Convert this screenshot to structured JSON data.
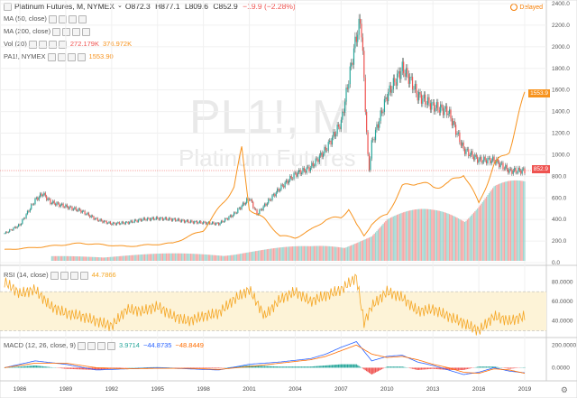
{
  "header": {
    "symbol_name": "Platinum Futures, M, NYMEX",
    "ohlc": {
      "open": "O872.3",
      "high": "H877.1",
      "low": "L809.6",
      "close": "C852.9",
      "change": "−19.9 (−2.28%)"
    },
    "delayed_label": "Delayed"
  },
  "indicators": [
    {
      "label": "MA (50, close)",
      "value": ""
    },
    {
      "label": "MA (200, close)",
      "value": ""
    },
    {
      "label": "Vol (20)",
      "value": "272.179K",
      "value2": "376.972K"
    },
    {
      "label": "PA1!, NYMEX",
      "value": "1553.90"
    }
  ],
  "rsi": {
    "label": "RSI (14, close)",
    "value": "44.7866"
  },
  "macd": {
    "label": "MACD (12, 26, close, 9)",
    "values": [
      "3.9714",
      "−44.8735",
      "−48.8449"
    ]
  },
  "watermark": {
    "ticker": "PL1!, M",
    "name": "Platinum Futures"
  },
  "price_tags": {
    "comparison": "1553.9",
    "last": "852.9"
  },
  "colors": {
    "up": "#26a69a",
    "down": "#ef5350",
    "compare": "#f7931e",
    "rsi": "#f5a623",
    "macd": "#2962ff",
    "signal": "#ff6d00"
  },
  "chart_data": {
    "type": "line",
    "x_ticks": [
      "1986",
      "1989",
      "1992",
      "1995",
      "1998",
      "2001",
      "2004",
      "2007",
      "2010",
      "2013",
      "2016",
      "2019"
    ],
    "main": {
      "y_ticks": [
        0.0,
        200.0,
        400.0,
        600.0,
        800.0,
        1000.0,
        1200.0,
        1400.0,
        1600.0,
        1800.0,
        2000.0,
        2200.0,
        2400.0
      ],
      "ylim": [
        0,
        2400
      ],
      "price_series": {
        "years": [
          1985,
          1986,
          1987,
          1987.5,
          1988,
          1989,
          1990,
          1991,
          1992,
          1993,
          1994,
          1995,
          1996,
          1997,
          1998,
          1999,
          2000,
          2001,
          2001.5,
          2002,
          2003,
          2004,
          2005,
          2006,
          2007,
          2008,
          2008.3,
          2008.8,
          2009,
          2010,
          2011,
          2011.5,
          2012,
          2013,
          2014,
          2015,
          2016,
          2017,
          2018,
          2019
        ],
        "values": [
          270,
          350,
          580,
          640,
          560,
          520,
          480,
          400,
          360,
          370,
          400,
          410,
          400,
          380,
          370,
          360,
          450,
          600,
          450,
          530,
          690,
          820,
          880,
          1050,
          1300,
          2100,
          2250,
          830,
          1100,
          1550,
          1800,
          1700,
          1550,
          1450,
          1400,
          1050,
          950,
          950,
          850,
          853
        ]
      },
      "comparison_series": {
        "years": [
          1985,
          1987,
          1990,
          1993,
          1996,
          1998,
          2000,
          2000.5,
          2001,
          2001.5,
          2002,
          2003,
          2004,
          2005,
          2006,
          2007,
          2007.5,
          2008,
          2008.5,
          2009,
          2010,
          2011,
          2012,
          2013,
          2014,
          2015,
          2016,
          2017,
          2018,
          2018.5,
          2019
        ],
        "values": [
          120,
          140,
          180,
          150,
          180,
          300,
          700,
          1050,
          500,
          450,
          400,
          250,
          230,
          300,
          400,
          420,
          500,
          350,
          250,
          360,
          450,
          700,
          750,
          700,
          730,
          830,
          550,
          900,
          1050,
          1300,
          1554
        ]
      },
      "volume": {
        "years": [
          1985,
          2000,
          2005,
          2009,
          2010,
          2013,
          2016,
          2017,
          2019
        ],
        "values": [
          10,
          25,
          45,
          80,
          120,
          160,
          210,
          240,
          220
        ]
      }
    },
    "rsi": {
      "y_ticks": [
        40.0,
        60.0,
        80.0
      ],
      "ylim": [
        25,
        95
      ],
      "band": [
        30,
        70
      ],
      "years": [
        1985,
        1986,
        1987,
        1988,
        1989,
        1990,
        1991,
        1992,
        1993,
        1994,
        1995,
        1996,
        1997,
        1998,
        1999,
        2000,
        2001,
        2002,
        2003,
        2004,
        2005,
        2006,
        2007,
        2008,
        2008.5,
        2009,
        2010,
        2011,
        2012,
        2013,
        2014,
        2015,
        2016,
        2017,
        2018,
        2019
      ],
      "values": [
        80,
        68,
        72,
        55,
        48,
        45,
        40,
        35,
        52,
        50,
        55,
        45,
        40,
        45,
        48,
        62,
        72,
        45,
        62,
        70,
        60,
        66,
        72,
        85,
        38,
        55,
        70,
        64,
        50,
        52,
        45,
        38,
        30,
        45,
        40,
        44.79
      ]
    },
    "macd": {
      "y_ticks": [
        0.0,
        200.0
      ],
      "ylim": [
        -100,
        250
      ],
      "years": [
        1985,
        1987,
        1989,
        1991,
        1993,
        1995,
        1997,
        1999,
        2001,
        2003,
        2005,
        2006,
        2007,
        2008,
        2009,
        2010,
        2011,
        2012,
        2013,
        2014,
        2015,
        2016,
        2017,
        2018,
        2019
      ],
      "macd_values": [
        0,
        60,
        30,
        -20,
        -10,
        0,
        -10,
        -20,
        30,
        50,
        80,
        120,
        180,
        230,
        60,
        100,
        110,
        50,
        20,
        -20,
        -60,
        -40,
        0,
        -30,
        -45
      ],
      "signal_values": [
        0,
        40,
        40,
        0,
        -10,
        -5,
        -5,
        -15,
        10,
        40,
        70,
        100,
        150,
        200,
        120,
        90,
        100,
        70,
        30,
        0,
        -40,
        -50,
        -10,
        -20,
        -49
      ]
    }
  }
}
